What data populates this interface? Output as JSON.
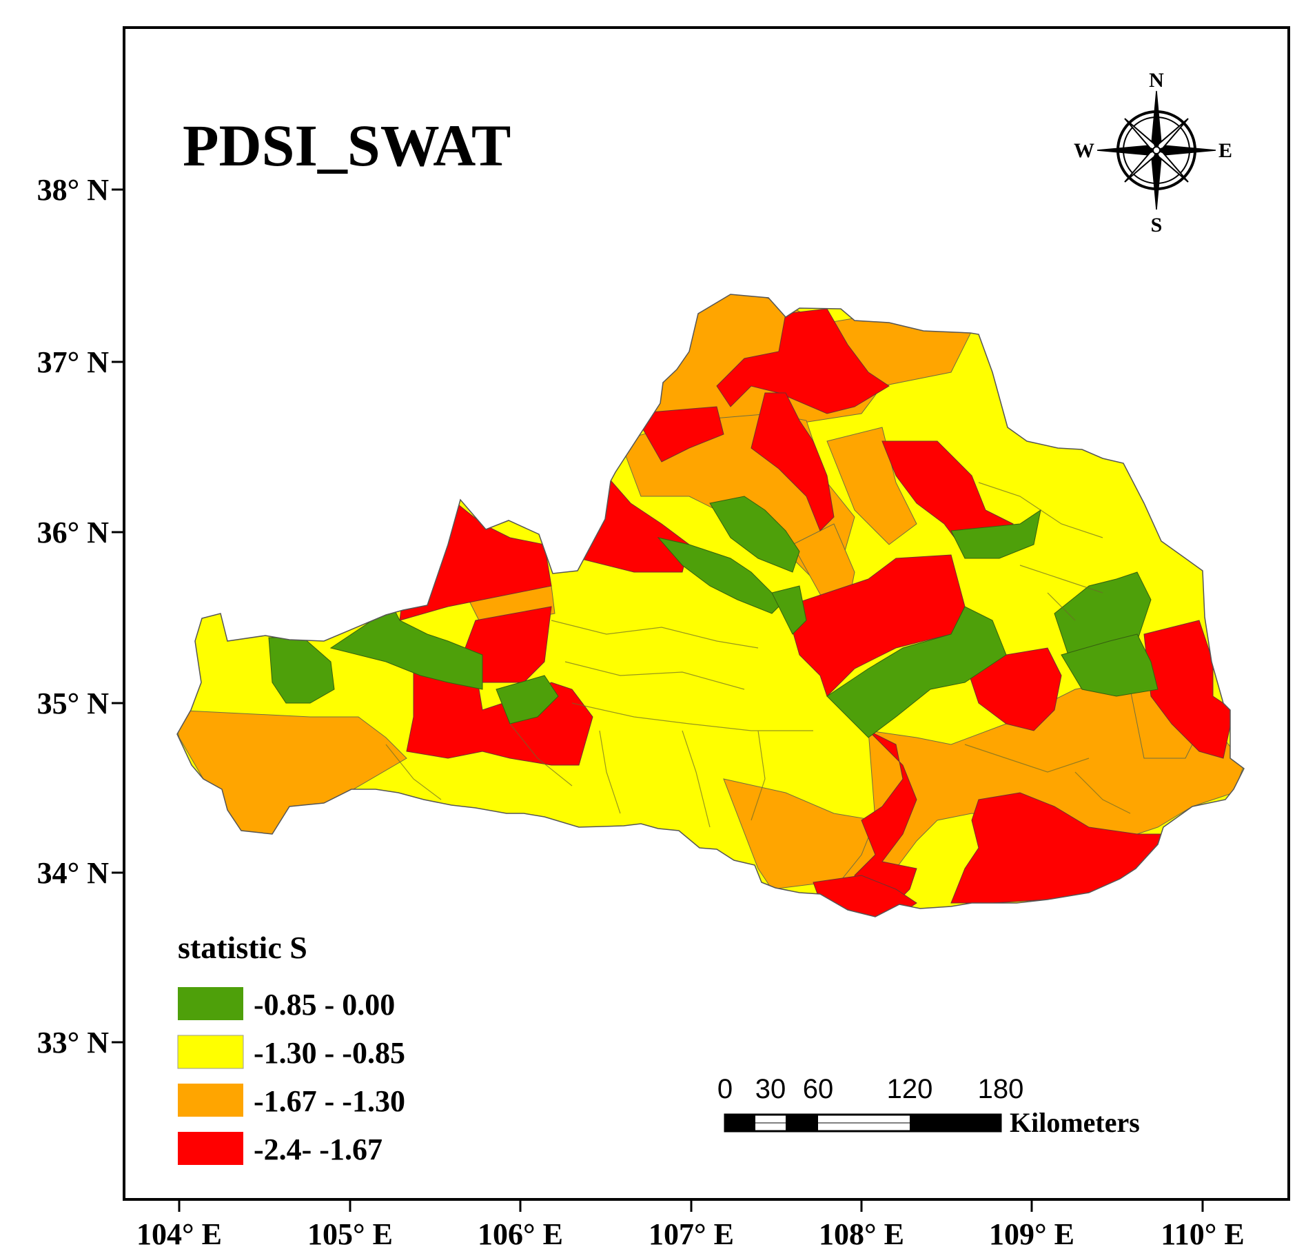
{
  "map": {
    "title": "PDSI_SWAT",
    "lat_labels": [
      "38° N",
      "37° N",
      "36° N",
      "35° N",
      "34° N",
      "33° N"
    ],
    "lon_labels": [
      "104° E",
      "105° E",
      "106° E",
      "107° E",
      "108° E",
      "109° E",
      "110° E"
    ],
    "compass": {
      "n": "N",
      "s": "S",
      "e": "E",
      "w": "W"
    },
    "legend": {
      "title": "statistic S",
      "items": [
        {
          "label": "-0.85 - 0.00",
          "color": "#4ea00a"
        },
        {
          "label": "-1.30 - -0.85",
          "color": "#ffff00"
        },
        {
          "label": "-1.67 - -1.30",
          "color": "#ffa500"
        },
        {
          "label": "-2.4- -1.67",
          "color": "#ff0000"
        }
      ]
    },
    "scale_bar": {
      "ticks": [
        "0",
        "30",
        "60",
        "120",
        "180"
      ],
      "unit": "Kilometers"
    }
  }
}
